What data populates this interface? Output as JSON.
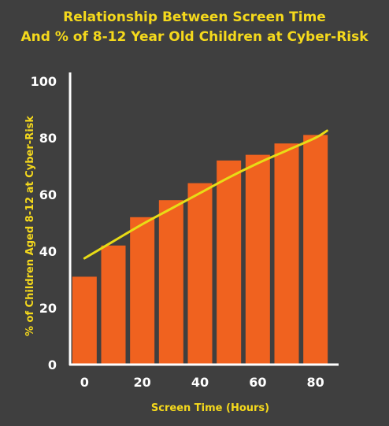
{
  "chart_data": {
    "type": "bar",
    "title_line1": "Relationship Between Screen Time",
    "title_line2": "And % of 8-12 Year Old Children at Cyber-Risk",
    "xlabel": "Screen Time (Hours)",
    "ylabel": "% of Children Aged 8-12 at Cyber-Risk",
    "x_ticks": [
      "0",
      "20",
      "40",
      "60",
      "80"
    ],
    "y_ticks": [
      "0",
      "20",
      "40",
      "60",
      "80",
      "100"
    ],
    "xlim": [
      -5,
      88
    ],
    "ylim": [
      0,
      100
    ],
    "x": [
      0,
      10,
      20,
      30,
      40,
      50,
      60,
      70,
      80
    ],
    "values": [
      31,
      42,
      52,
      58,
      64,
      72,
      74,
      78,
      81
    ],
    "trend": {
      "x": [
        0,
        10,
        20,
        30,
        40,
        50,
        60,
        70,
        80,
        84
      ],
      "y": [
        37.5,
        43.5,
        49.5,
        55,
        60.5,
        66,
        71,
        75.5,
        80,
        82.5
      ]
    },
    "colors": {
      "bar": "#f0621f",
      "trend": "#e8dc16",
      "axis": "#ffffff",
      "text": "#f5d91c",
      "background": "#3f3f3f"
    },
    "grid": false,
    "legend": "none"
  }
}
